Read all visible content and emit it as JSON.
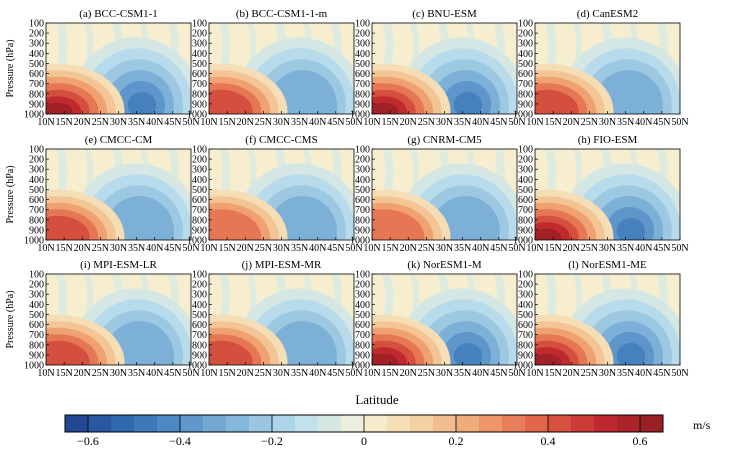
{
  "chart_data": {
    "type": "heatmap",
    "figure_xlabel": "Latitude",
    "colorbar": {
      "unit": "m/s",
      "range": [
        -0.65,
        0.65
      ],
      "ticks": [
        -0.6,
        -0.4,
        -0.2,
        0,
        0.2,
        0.4,
        0.6
      ],
      "tick_labels": [
        "−0.6",
        "−0.4",
        "−0.2",
        "0",
        "0.2",
        "0.4",
        "0.6"
      ],
      "colors": [
        "#1f3f8f",
        "#2f6ab0",
        "#5a93c9",
        "#8cbddd",
        "#bfe0ee",
        "#f6f3d6",
        "#f4d0a0",
        "#ef9d6e",
        "#df5f45",
        "#c02a2f",
        "#8e1c22"
      ]
    },
    "ylabel": "Pressure (hPa)",
    "y_ticks": [
      "100",
      "200",
      "300",
      "400",
      "500",
      "600",
      "700",
      "800",
      "900",
      "1000"
    ],
    "x_ticks": [
      "10N",
      "15N",
      "20N",
      "25N",
      "30N",
      "35N",
      "40N",
      "45N",
      "50N"
    ],
    "xlim": [
      10,
      50
    ],
    "ylim": [
      1000,
      100
    ],
    "panels": [
      {
        "title": "(a) BCC-CSM1-1",
        "warm_max": 0.6,
        "cold_min": -0.45
      },
      {
        "title": "(b) BCC-CSM1-1-m",
        "warm_max": 0.45,
        "cold_min": -0.35
      },
      {
        "title": "(c) BNU-ESM",
        "warm_max": 0.6,
        "cold_min": -0.45
      },
      {
        "title": "(d) CanESM2",
        "warm_max": 0.45,
        "cold_min": -0.35
      },
      {
        "title": "(e) CMCC-CM",
        "warm_max": 0.45,
        "cold_min": -0.3
      },
      {
        "title": "(f) CMCC-CMS",
        "warm_max": 0.35,
        "cold_min": -0.3
      },
      {
        "title": "(g) CNRM-CM5",
        "warm_max": 0.4,
        "cold_min": -0.35
      },
      {
        "title": "(h) FIO-ESM",
        "warm_max": 0.6,
        "cold_min": -0.45
      },
      {
        "title": "(i) MPI-ESM-LR",
        "warm_max": 0.5,
        "cold_min": -0.35
      },
      {
        "title": "(j) MPI-ESM-MR",
        "warm_max": 0.45,
        "cold_min": -0.35
      },
      {
        "title": "(k) NorESM1-M",
        "warm_max": 0.6,
        "cold_min": -0.45
      },
      {
        "title": "(l) NorESM1-ME",
        "warm_max": 0.6,
        "cold_min": -0.45
      }
    ]
  }
}
